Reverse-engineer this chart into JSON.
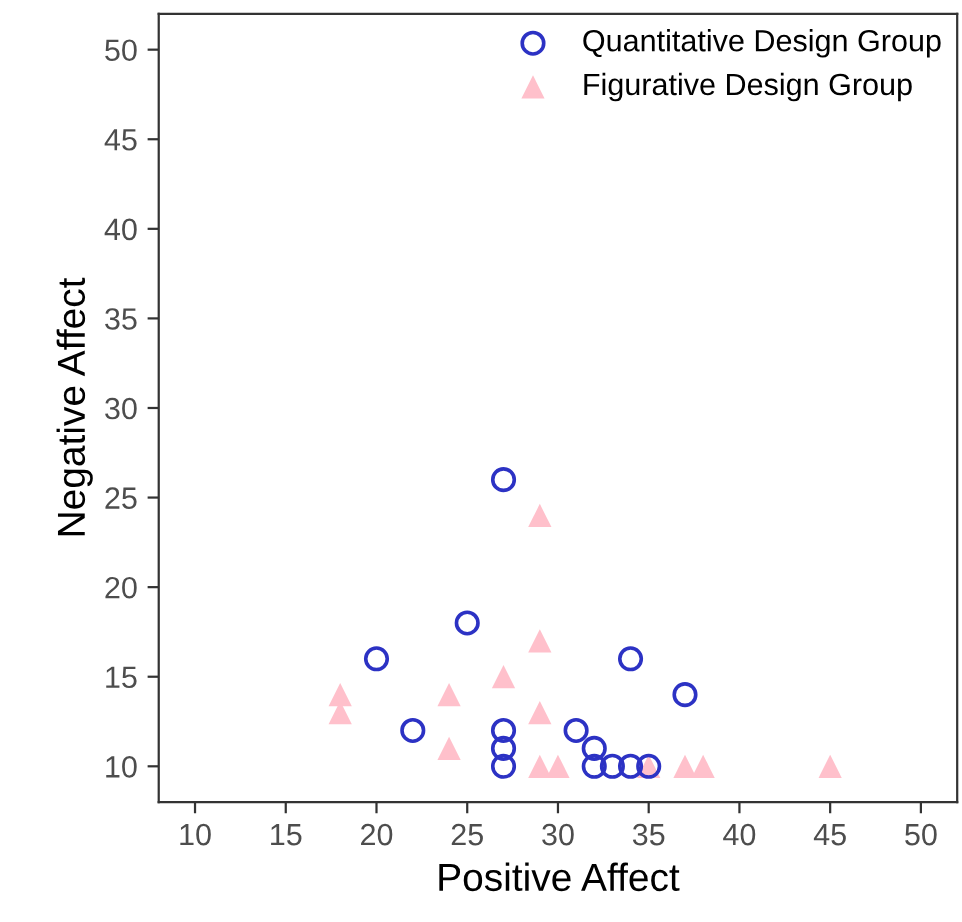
{
  "chart_data": {
    "type": "scatter",
    "xlabel": "Positive Affect",
    "ylabel": "Negative Affect",
    "xlim": [
      8,
      52
    ],
    "ylim": [
      8,
      52
    ],
    "xticks": [
      10,
      15,
      20,
      25,
      30,
      35,
      40,
      45,
      50
    ],
    "yticks": [
      10,
      15,
      20,
      25,
      30,
      35,
      40,
      45,
      50
    ],
    "grid": false,
    "legend": "top right",
    "series": [
      {
        "name": "Quantitative Design Group",
        "color": "#2c32c4",
        "marker": "circle",
        "x": [
          27,
          25,
          20,
          34,
          37,
          22,
          27,
          27,
          27,
          31,
          32,
          32,
          33,
          34,
          35
        ],
        "values": [
          26,
          18,
          16,
          16,
          14,
          12,
          12,
          11,
          10,
          12,
          11,
          10,
          10,
          10,
          10
        ]
      },
      {
        "name": "Figurative Design Group",
        "color": "#ffc0cb",
        "marker": "triangle",
        "x": [
          29,
          29,
          27,
          18,
          18,
          24,
          29,
          24,
          29,
          30,
          35,
          37,
          38,
          45
        ],
        "values": [
          24,
          17,
          15,
          14,
          13,
          14,
          13,
          11,
          10,
          10,
          10,
          10,
          10,
          10
        ]
      }
    ]
  }
}
